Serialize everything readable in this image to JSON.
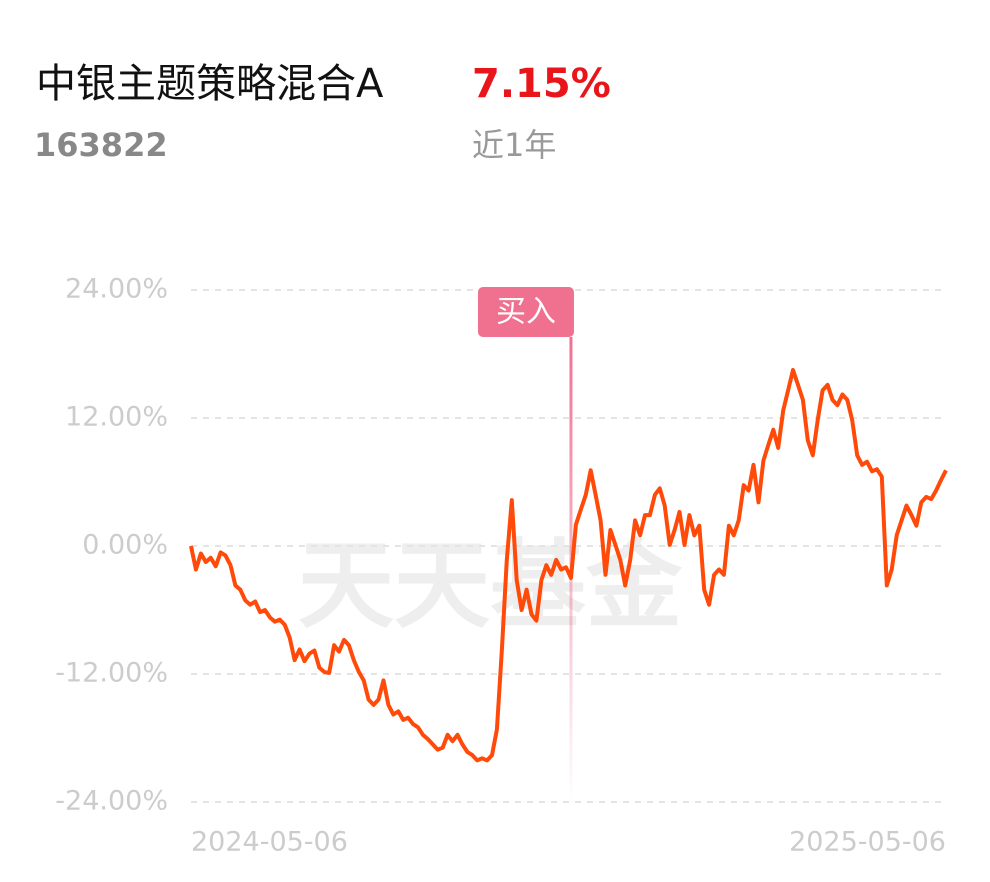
{
  "header": {
    "title": "中银主题策略混合A",
    "return": "7.15%",
    "code": "163822",
    "period": "近1年"
  },
  "chart_data": {
    "type": "line",
    "watermark": "天天基金",
    "series": [
      {
        "name": "中银主题策略混合A",
        "color": "#ff4a0a",
        "values": [
          0,
          -2.2,
          -0.7,
          -1.5,
          -1.1,
          -1.9,
          -0.6,
          -0.9,
          -1.8,
          -3.7,
          -4.1,
          -5.1,
          -5.5,
          -5.2,
          -6.2,
          -6,
          -6.7,
          -7.1,
          -6.9,
          -7.4,
          -8.6,
          -10.7,
          -9.7,
          -10.8,
          -10.1,
          -9.8,
          -11.4,
          -11.8,
          -11.9,
          -9.3,
          -9.9,
          -8.8,
          -9.3,
          -10.7,
          -11.8,
          -12.6,
          -14.4,
          -14.9,
          -14.4,
          -12.6,
          -14.9,
          -15.8,
          -15.5,
          -16.3,
          -16.1,
          -16.7,
          -17,
          -17.7,
          -18.1,
          -18.6,
          -19.1,
          -18.9,
          -17.7,
          -18.3,
          -17.7,
          -18.6,
          -19.3,
          -19.6,
          -20.1,
          -19.9,
          -20.1,
          -19.6,
          -17.2,
          -9.7,
          -1.3,
          4.3,
          -3.2,
          -6,
          -4.1,
          -6.4,
          -7,
          -3.2,
          -1.8,
          -2.7,
          -1.3,
          -2.2,
          -2,
          -3,
          2,
          3.4,
          4.8,
          7.1,
          4.8,
          2.4,
          -2.7,
          1.5,
          0.1,
          -1.3,
          -3.7,
          -1.3,
          2.4,
          1,
          2.9,
          2.9,
          4.8,
          5.4,
          3.8,
          0.1,
          1.5,
          3.2,
          0.1,
          2.9,
          1,
          1.9,
          -4.1,
          -5.5,
          -2.7,
          -2.2,
          -2.7,
          1.9,
          1,
          2.4,
          5.7,
          5.2,
          7.6,
          4.1,
          8,
          9.5,
          10.9,
          9.2,
          12.7,
          14.6,
          16.5,
          15.1,
          13.7,
          9.9,
          8.5,
          11.8,
          14.6,
          15.1,
          13.7,
          13.2,
          14.2,
          13.7,
          11.8,
          8.5,
          7.6,
          7.9,
          7,
          7.2,
          6.5,
          -3.7,
          -2.2,
          1,
          2.4,
          3.8,
          2.9,
          1.9,
          4.1,
          4.6,
          4.4,
          5.2,
          6.2,
          7.1
        ]
      }
    ],
    "annotation": {
      "label": "买入",
      "x": 77
    },
    "xlim": [
      0,
      153
    ],
    "xticks": [
      {
        "value": 0,
        "label": "2024-05-06"
      },
      {
        "value": 153,
        "label": "2025-05-06"
      }
    ],
    "ylim": [
      -24,
      24
    ],
    "yticks": [
      {
        "value": 24,
        "label": "24.00%"
      },
      {
        "value": 12,
        "label": "12.00%"
      },
      {
        "value": 0,
        "label": "0.00%"
      },
      {
        "value": -12,
        "label": "-12.00%"
      },
      {
        "value": -24,
        "label": "-24.00%"
      }
    ],
    "grid": true
  }
}
